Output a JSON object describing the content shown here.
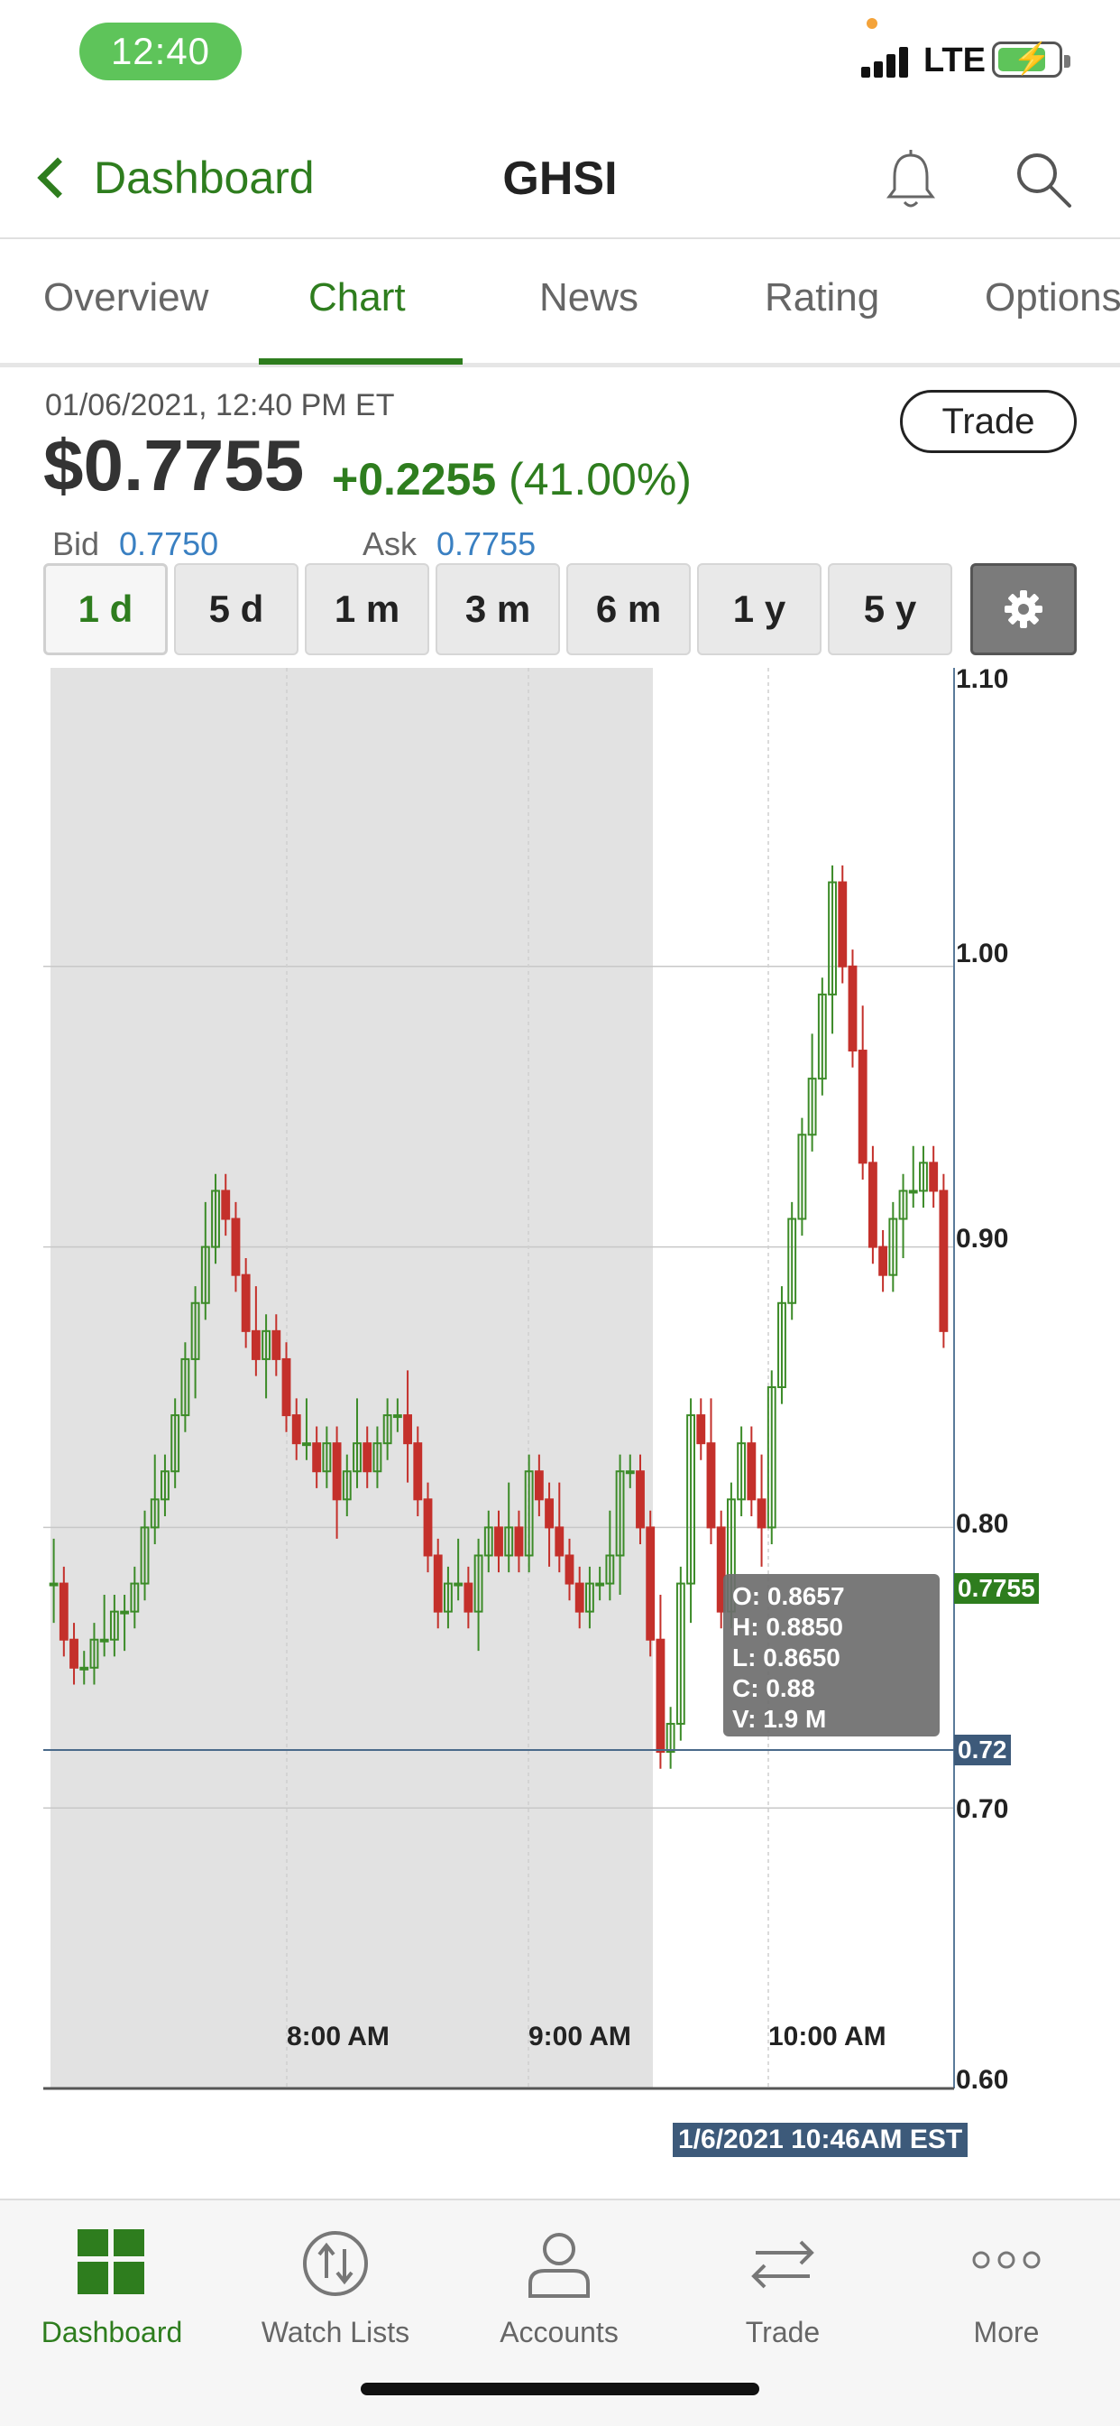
{
  "status_bar": {
    "time": "12:40",
    "network": "LTE"
  },
  "header": {
    "back_label": "Dashboard",
    "title": "GHSI"
  },
  "tabs": [
    "Overview",
    "Chart",
    "News",
    "Rating",
    "Options"
  ],
  "active_tab": "Chart",
  "quote": {
    "datetime": "01/06/2021, 12:40 PM ET",
    "price": "$0.7755",
    "change": "+0.2255",
    "change_pct": "(41.00%)",
    "bid_label": "Bid",
    "bid": "0.7750",
    "ask_label": "Ask",
    "ask": "0.7755",
    "trade_label": "Trade"
  },
  "ranges": [
    "1 d",
    "5 d",
    "1 m",
    "3 m",
    "6 m",
    "1 y",
    "5 y"
  ],
  "active_range": "1 d",
  "chart_data": {
    "type": "candlestick",
    "y_ticks": [
      "1.10",
      "1.00",
      "0.90",
      "0.80",
      "0.70",
      "0.60"
    ],
    "ylim": [
      0.6,
      1.1
    ],
    "x_ticks": [
      "8:00 AM",
      "9:00 AM",
      "10:00 AM"
    ],
    "current_price_tag": "0.7755",
    "crosshair_price": "0.72",
    "crosshair_time": "1/6/2021 10:46AM EST",
    "premarket_shaded": true,
    "grid": true,
    "tooltip": {
      "open": "O: 0.8657",
      "high": "H: 0.8850",
      "low": "L: 0.8650",
      "close": "C: 0.88",
      "volume": "V: 1.9 M"
    },
    "candles_close_approx": [
      0.78,
      0.76,
      0.75,
      0.75,
      0.76,
      0.76,
      0.77,
      0.77,
      0.78,
      0.8,
      0.81,
      0.82,
      0.84,
      0.86,
      0.88,
      0.9,
      0.92,
      0.91,
      0.89,
      0.87,
      0.86,
      0.87,
      0.86,
      0.84,
      0.83,
      0.83,
      0.82,
      0.83,
      0.81,
      0.82,
      0.83,
      0.82,
      0.83,
      0.84,
      0.84,
      0.83,
      0.81,
      0.79,
      0.77,
      0.78,
      0.78,
      0.77,
      0.79,
      0.8,
      0.79,
      0.8,
      0.79,
      0.82,
      0.81,
      0.8,
      0.79,
      0.78,
      0.77,
      0.78,
      0.78,
      0.79,
      0.82,
      0.82,
      0.8,
      0.76,
      0.72,
      0.73,
      0.78,
      0.84,
      0.83,
      0.8,
      0.77,
      0.81,
      0.83,
      0.81,
      0.8,
      0.85,
      0.88,
      0.91,
      0.94,
      0.96,
      0.99,
      1.03,
      1.0,
      0.97,
      0.93,
      0.9,
      0.89,
      0.91,
      0.92,
      0.92,
      0.93,
      0.92,
      0.87
    ]
  },
  "bottom_nav": [
    {
      "label": "Dashboard",
      "icon": "dashboard-icon"
    },
    {
      "label": "Watch Lists",
      "icon": "watchlists-icon"
    },
    {
      "label": "Accounts",
      "icon": "accounts-icon"
    },
    {
      "label": "Trade",
      "icon": "trade-icon"
    },
    {
      "label": "More",
      "icon": "more-icon"
    }
  ],
  "colors": {
    "brand_green": "#2e7d1e",
    "up_candle": "#3c8b28",
    "down_candle": "#c4302b",
    "link_blue": "#3a80c2"
  }
}
